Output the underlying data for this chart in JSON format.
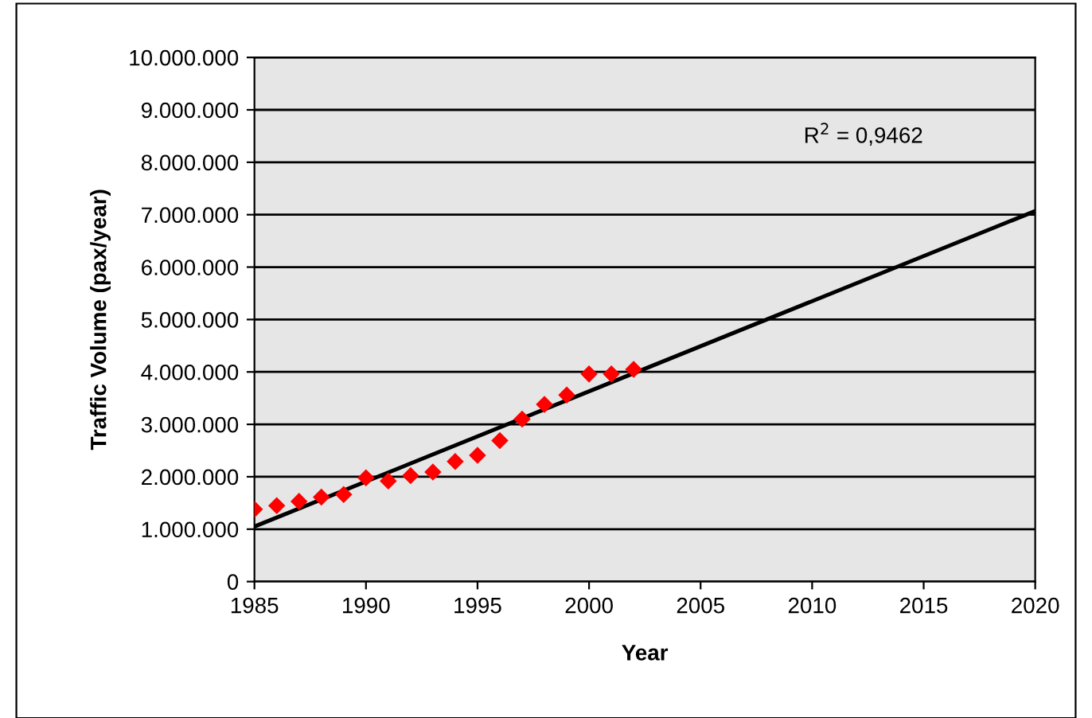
{
  "chart_data": {
    "type": "scatter",
    "xlabel": "Year",
    "ylabel": "Traffic Volume (pax/year)",
    "series": [
      {
        "color": "#ff0000",
        "marker": "diamond",
        "x": [
          1985,
          1986,
          1987,
          1988,
          1989,
          1990,
          1991,
          1992,
          1993,
          1994,
          1995,
          1996,
          1997,
          1998,
          1999,
          2000,
          2001,
          2002
        ],
        "values": [
          1380000,
          1450000,
          1530000,
          1610000,
          1660000,
          1980000,
          1920000,
          2020000,
          2090000,
          2290000,
          2410000,
          2690000,
          3100000,
          3380000,
          3560000,
          3960000,
          3960000,
          4050000
        ]
      },
      {
        "type": "line",
        "color": "#000000",
        "x": [
          1985,
          2020
        ],
        "values": [
          1050000,
          7070000
        ]
      }
    ],
    "annotations": [
      "R$^{2}$ = 0,9462"
    ],
    "xlim": [
      1985,
      2020
    ],
    "xticks": [
      1985,
      1990,
      1995,
      2000,
      2005,
      2010,
      2015,
      2020
    ],
    "ylim": [
      0,
      10000000
    ],
    "yticks": [
      0,
      {
        "value": 1000000,
        "label": "1.000.000"
      },
      {
        "value": 2000000,
        "label": "2.000.000"
      },
      {
        "value": 3000000,
        "label": "3.000.000"
      },
      {
        "value": 4000000,
        "label": "4.000.000"
      },
      {
        "value": 5000000,
        "label": "5.000.000"
      },
      {
        "value": 6000000,
        "label": "6.000.000"
      },
      {
        "value": 7000000,
        "label": "7.000.000"
      },
      {
        "value": 8000000,
        "label": "8.000.000"
      },
      {
        "value": 9000000,
        "label": "9.000.000"
      },
      {
        "value": 10000000,
        "label": "10.000.000"
      }
    ],
    "grid": "y",
    "legend": false
  }
}
